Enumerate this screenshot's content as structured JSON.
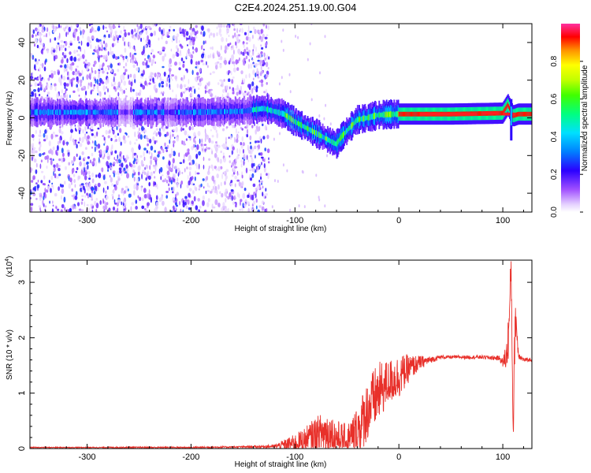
{
  "title": "C2E4.2024.251.19.00.G04",
  "chart_data": [
    {
      "type": "heatmap",
      "xlabel": "Height of straight line (km)",
      "ylabel": "Frequency (Hz)",
      "xlim": [
        -355,
        128
      ],
      "ylim": [
        -50,
        50
      ],
      "xticks": [
        -300,
        -200,
        -100,
        0,
        100
      ],
      "yticks": [
        -40,
        -20,
        0,
        20,
        40
      ],
      "colorbar": {
        "label": "Normalized spectral amplitude",
        "range": [
          0,
          1
        ],
        "ticks": [
          "0.0",
          "0.2",
          "0.4",
          "0.6",
          "0.8"
        ]
      },
      "ridge": {
        "x": [
          -350,
          -300,
          -250,
          -200,
          -150,
          -130,
          -110,
          -100,
          -90,
          -80,
          -70,
          -60,
          -55,
          -45,
          -40,
          -30,
          -20,
          -10,
          0,
          50,
          100,
          105,
          110,
          115,
          128
        ],
        "frequency": [
          3,
          3,
          3,
          3,
          3.5,
          5,
          2,
          -2,
          -5,
          -8,
          -11,
          -14,
          -10,
          -4,
          -1,
          0,
          1.5,
          1.8,
          2,
          2,
          2.5,
          7,
          1,
          2,
          2
        ]
      },
      "noise_region_x": [
        -355,
        -125
      ]
    },
    {
      "type": "line",
      "xlabel": "Height of straight line (km)",
      "ylabel": "SNR (10 * v/v)",
      "yscale_label": "(x10",
      "yscale_exp": "4",
      "xlim": [
        -355,
        128
      ],
      "ylim": [
        0,
        3.4
      ],
      "xticks": [
        -300,
        -200,
        -100,
        0,
        100
      ],
      "yticks": [
        0,
        1,
        2,
        3
      ],
      "series": [
        {
          "color": "#e8302a",
          "x": [
            -355,
            -300,
            -250,
            -200,
            -150,
            -120,
            -100,
            -90,
            -80,
            -70,
            -60,
            -50,
            -40,
            -30,
            -20,
            -10,
            0,
            10,
            20,
            30,
            40,
            60,
            80,
            97,
            100,
            104,
            106,
            108,
            110,
            112,
            115,
            120,
            128
          ],
          "y": [
            0.02,
            0.02,
            0.02,
            0.02,
            0.03,
            0.04,
            0.1,
            0.15,
            0.25,
            0.3,
            0.2,
            0.12,
            0.3,
            0.7,
            1.0,
            1.2,
            1.3,
            1.45,
            1.55,
            1.6,
            1.65,
            1.65,
            1.65,
            1.63,
            1.55,
            1.7,
            2.2,
            3.3,
            0.3,
            2.5,
            1.7,
            1.6,
            1.6
          ],
          "noise": [
            0.005,
            0.005,
            0.008,
            0.008,
            0.01,
            0.02,
            0.1,
            0.15,
            0.2,
            0.25,
            0.2,
            0.2,
            0.3,
            0.35,
            0.35,
            0.25,
            0.25,
            0.15,
            0.08,
            0.04,
            0.02,
            0.02,
            0.02,
            0.03,
            0.05,
            0.2,
            0.3,
            0.2,
            0.2,
            0.3,
            0.05,
            0.02,
            0.02
          ]
        }
      ]
    }
  ]
}
